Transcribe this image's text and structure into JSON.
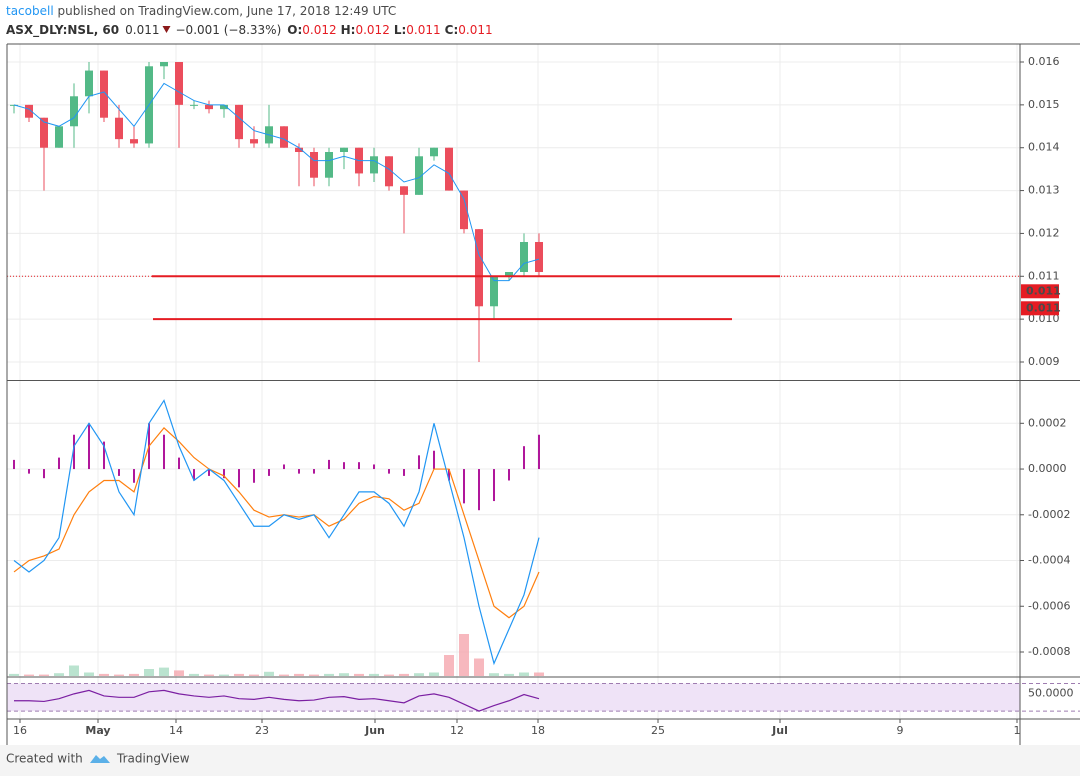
{
  "header": {
    "author": "tacobell",
    "published": " published on TradingView.com, June 17, 2018 12:49 UTC",
    "symbol": "ASX_DLY:NSL, 60",
    "last": "0.011",
    "change": "−0.001 (−8.33%)",
    "ohlc": [
      {
        "k": "O:",
        "v": "0.012"
      },
      {
        "k": "H:",
        "v": "0.012"
      },
      {
        "k": "L:",
        "v": "0.011"
      },
      {
        "k": "C:",
        "v": "0.011"
      }
    ]
  },
  "footer": {
    "created": "Created with",
    "brand": "TradingView"
  },
  "chart_data": {
    "type": "candlestick",
    "x": [
      0.7,
      2.2,
      3.7,
      5.2,
      6.7,
      8.2,
      9.7,
      11.2,
      12.7,
      14.2,
      15.7,
      17.2,
      18.7,
      20.2,
      21.7,
      23.2,
      24.7,
      26.2,
      27.7,
      29.2,
      30.7,
      32.2,
      33.7,
      35.2,
      36.7,
      38.2,
      39.7,
      41.2,
      42.7,
      44.2,
      45.7,
      47.2,
      48.7,
      50.2,
      51.7,
      53.2
    ],
    "open": [
      0.015,
      0.015,
      0.0147,
      0.014,
      0.0145,
      0.0152,
      0.0158,
      0.0147,
      0.0142,
      0.0141,
      0.0159,
      0.016,
      0.015,
      0.015,
      0.0149,
      0.015,
      0.0142,
      0.0141,
      0.0145,
      0.014,
      0.0139,
      0.0133,
      0.0139,
      0.014,
      0.0134,
      0.0138,
      0.0131,
      0.0129,
      0.0138,
      0.014,
      0.013,
      0.0121,
      0.0103,
      0.011,
      0.0111,
      0.0118
    ],
    "high": [
      0.015,
      0.015,
      0.0147,
      0.0145,
      0.0155,
      0.016,
      0.0158,
      0.015,
      0.0145,
      0.016,
      0.016,
      0.016,
      0.0151,
      0.0151,
      0.015,
      0.015,
      0.0145,
      0.015,
      0.0145,
      0.0141,
      0.014,
      0.014,
      0.014,
      0.014,
      0.014,
      0.0138,
      0.0131,
      0.014,
      0.014,
      0.014,
      0.013,
      0.0121,
      0.011,
      0.0111,
      0.012,
      0.012
    ],
    "low": [
      0.0148,
      0.0146,
      0.013,
      0.014,
      0.014,
      0.0148,
      0.0146,
      0.014,
      0.014,
      0.014,
      0.0156,
      0.014,
      0.0149,
      0.0148,
      0.0147,
      0.014,
      0.014,
      0.014,
      0.014,
      0.0131,
      0.0131,
      0.0131,
      0.0135,
      0.0131,
      0.0132,
      0.013,
      0.012,
      0.0129,
      0.0137,
      0.013,
      0.012,
      0.009,
      0.01,
      0.0109,
      0.011,
      0.011
    ],
    "close": [
      0.015,
      0.0147,
      0.014,
      0.0145,
      0.0152,
      0.0158,
      0.0147,
      0.0142,
      0.0141,
      0.0159,
      0.016,
      0.015,
      0.015,
      0.0149,
      0.015,
      0.0142,
      0.0141,
      0.0145,
      0.014,
      0.0139,
      0.0133,
      0.0139,
      0.014,
      0.0134,
      0.0138,
      0.0131,
      0.0129,
      0.0138,
      0.014,
      0.013,
      0.0121,
      0.0103,
      0.011,
      0.0111,
      0.0118,
      0.0111
    ],
    "up_color": "#53b987",
    "down_color": "#eb4d5c",
    "ma": {
      "color": "#2196f3",
      "values": [
        0.015,
        0.0149,
        0.0146,
        0.0145,
        0.0147,
        0.0152,
        0.0153,
        0.0149,
        0.0145,
        0.015,
        0.0155,
        0.0153,
        0.0151,
        0.015,
        0.015,
        0.0147,
        0.0144,
        0.0143,
        0.0142,
        0.014,
        0.0137,
        0.0137,
        0.0138,
        0.0137,
        0.0137,
        0.0135,
        0.0132,
        0.0133,
        0.0136,
        0.0134,
        0.0128,
        0.0115,
        0.0109,
        0.0109,
        0.0113,
        0.0114
      ]
    },
    "xlim": [
      0,
      101.3
    ],
    "xticks": [
      {
        "value": 1.3,
        "label": "16"
      },
      {
        "value": 9.1,
        "label": "May"
      },
      {
        "value": 16.9,
        "label": "14"
      },
      {
        "value": 25.5,
        "label": "23"
      },
      {
        "value": 36.8,
        "label": "Jun"
      },
      {
        "value": 45,
        "label": "12"
      },
      {
        "value": 53.1,
        "label": "18"
      },
      {
        "value": 65.1,
        "label": "25"
      },
      {
        "value": 77.3,
        "label": "Jul"
      },
      {
        "value": 89.3,
        "label": "9"
      },
      {
        "value": 101,
        "label": "1"
      }
    ],
    "ylim": [
      0.00858,
      0.01642
    ],
    "yticks": [
      0.009,
      {
        "value": 0.01,
        "label": "0.010"
      },
      0.011,
      0.012,
      0.013,
      0.014,
      0.015,
      0.016
    ],
    "grid": true,
    "level_color": "#e51c23",
    "levels": [
      {
        "value": 0.011,
        "x": [
          14.5,
          77.3
        ]
      },
      {
        "value": 0.01,
        "x": [
          14.6,
          72.5
        ]
      }
    ],
    "last_price": 0.011,
    "price_labels": [
      0.011,
      0.011
    ],
    "macd": {
      "ylim": [
        -0.000905,
        0.000385
      ],
      "yticks": [
        -0.0008,
        -0.0006,
        -0.0004,
        -0.0002,
        {
          "value": 0,
          "label": "0.0000"
        },
        0.0002
      ],
      "macd": {
        "color": "#2196f3",
        "values": [
          -0.0004,
          -0.00045,
          -0.0004,
          -0.0003,
          0.0001,
          0.0002,
          0.0001,
          -0.0001,
          -0.0002,
          0.0002,
          0.0003,
          0.0001,
          -5e-05,
          0,
          -5e-05,
          -0.00015,
          -0.00025,
          -0.00025,
          -0.0002,
          -0.00022,
          -0.0002,
          -0.0003,
          -0.0002,
          -0.0001,
          -0.0001,
          -0.00015,
          -0.00025,
          -0.0001,
          0.0002,
          -5e-05,
          -0.0003,
          -0.0006,
          -0.00085,
          -0.0007,
          -0.00055,
          -0.0003
        ]
      },
      "signal": {
        "color": "#ff7f0e",
        "values": [
          -0.00045,
          -0.0004,
          -0.00038,
          -0.00035,
          -0.0002,
          -0.0001,
          -5e-05,
          -5e-05,
          -0.0001,
          0.0001,
          0.00018,
          0.00012,
          5e-05,
          0,
          -3e-05,
          -0.0001,
          -0.00018,
          -0.00021,
          -0.0002,
          -0.00021,
          -0.0002,
          -0.00025,
          -0.00022,
          -0.00015,
          -0.00012,
          -0.00013,
          -0.00018,
          -0.00015,
          0,
          0,
          -0.0002,
          -0.0004,
          -0.0006,
          -0.00065,
          -0.0006,
          -0.00045
        ]
      },
      "hist": {
        "color": "#b0179b",
        "values": [
          4e-05,
          -2e-05,
          -4e-05,
          5e-05,
          0.00015,
          0.0002,
          0.00012,
          -3e-05,
          -6e-05,
          0.0002,
          0.00015,
          5e-05,
          -5e-05,
          -3e-05,
          -4e-05,
          -8e-05,
          -6e-05,
          -3e-05,
          2e-05,
          -2e-05,
          -2e-05,
          4e-05,
          3e-05,
          3e-05,
          2e-05,
          -2e-05,
          -3e-05,
          6e-05,
          8e-05,
          -5e-05,
          -0.00015,
          -0.00018,
          -0.00014,
          -5e-05,
          0.0001,
          0.00015
        ]
      }
    },
    "volume": {
      "vlim": [
        0,
        100
      ],
      "up_color": "#a9dcc3",
      "down_color": "#f5a6ae",
      "values": [
        3,
        2,
        2,
        4,
        15,
        5,
        3,
        2,
        3,
        10,
        12,
        8,
        3,
        2,
        2,
        3,
        2,
        6,
        2,
        3,
        2,
        3,
        4,
        3,
        3,
        2,
        3,
        4,
        5,
        30,
        60,
        25,
        4,
        3,
        5,
        5
      ]
    },
    "rsi": {
      "ylim": [
        20,
        78
      ],
      "yticks": [
        {
          "value": 50,
          "label": "50.0000"
        }
      ],
      "bands": [
        70,
        30
      ],
      "color": "#7b1fa2",
      "values": [
        45,
        45,
        44,
        48,
        55,
        60,
        52,
        50,
        50,
        58,
        60,
        55,
        52,
        50,
        52,
        48,
        47,
        50,
        47,
        45,
        46,
        50,
        51,
        47,
        48,
        45,
        42,
        52,
        55,
        50,
        40,
        30,
        38,
        45,
        54,
        48
      ]
    }
  }
}
